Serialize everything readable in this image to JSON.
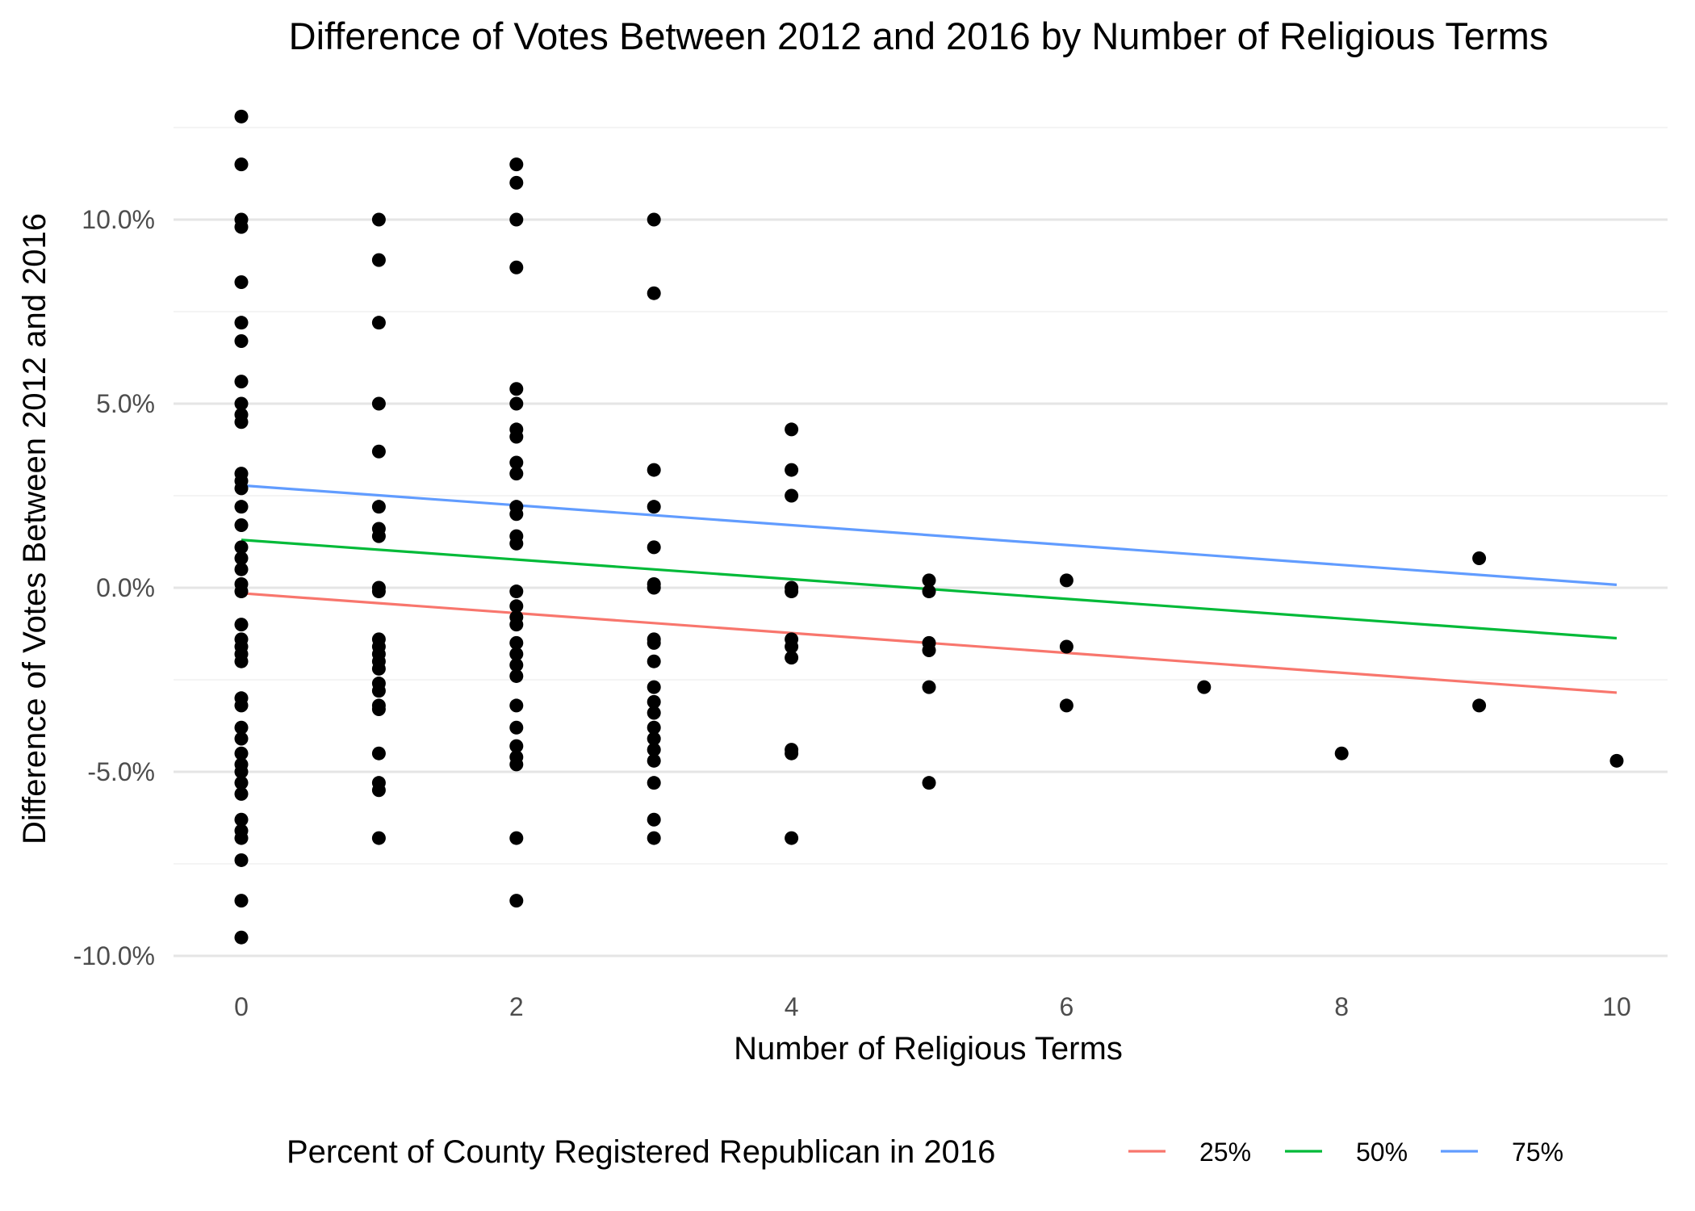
{
  "chart_data": {
    "type": "scatter",
    "title": "Difference of Votes Between 2012 and 2016 by Number of Religious Terms",
    "xlabel": "Number of Religious Terms",
    "ylabel": "Difference of Votes Between 2012 and 2016",
    "xlim": [
      -0.5,
      10.5
    ],
    "ylim": [
      -10.6,
      13.3
    ],
    "x_ticks": [
      0,
      2,
      4,
      6,
      8,
      10
    ],
    "x_tick_labels": [
      "0",
      "2",
      "4",
      "6",
      "8",
      "10"
    ],
    "y_ticks": [
      -10,
      -5,
      0,
      5,
      10
    ],
    "y_tick_labels": [
      "-10.0%",
      "-5.0%",
      "0.0%",
      "5.0%",
      "10.0%"
    ],
    "grid": true,
    "legend": {
      "title": "Percent of County Registered Republican in 2016",
      "position": "bottom"
    },
    "points": [
      [
        0,
        12.8
      ],
      [
        0,
        11.5
      ],
      [
        0,
        10.0
      ],
      [
        0,
        9.8
      ],
      [
        0,
        8.3
      ],
      [
        0,
        7.2
      ],
      [
        0,
        6.7
      ],
      [
        0,
        5.6
      ],
      [
        0,
        5.0
      ],
      [
        0,
        4.7
      ],
      [
        0,
        4.5
      ],
      [
        0,
        3.1
      ],
      [
        0,
        2.9
      ],
      [
        0,
        2.7
      ],
      [
        0,
        2.2
      ],
      [
        0,
        1.7
      ],
      [
        0,
        1.1
      ],
      [
        0,
        0.8
      ],
      [
        0,
        0.5
      ],
      [
        0,
        0.1
      ],
      [
        0,
        -0.1
      ],
      [
        0,
        -1.0
      ],
      [
        0,
        -1.4
      ],
      [
        0,
        -1.6
      ],
      [
        0,
        -1.8
      ],
      [
        0,
        -2.0
      ],
      [
        0,
        -3.0
      ],
      [
        0,
        -3.2
      ],
      [
        0,
        -3.8
      ],
      [
        0,
        -4.1
      ],
      [
        0,
        -4.5
      ],
      [
        0,
        -4.8
      ],
      [
        0,
        -5.0
      ],
      [
        0,
        -5.3
      ],
      [
        0,
        -5.6
      ],
      [
        0,
        -6.3
      ],
      [
        0,
        -6.6
      ],
      [
        0,
        -6.8
      ],
      [
        0,
        -7.4
      ],
      [
        0,
        -8.5
      ],
      [
        0,
        -9.5
      ],
      [
        1,
        10.0
      ],
      [
        1,
        8.9
      ],
      [
        1,
        7.2
      ],
      [
        1,
        5.0
      ],
      [
        1,
        3.7
      ],
      [
        1,
        2.2
      ],
      [
        1,
        1.6
      ],
      [
        1,
        1.4
      ],
      [
        1,
        0.0
      ],
      [
        1,
        -0.1
      ],
      [
        1,
        -1.4
      ],
      [
        1,
        -1.6
      ],
      [
        1,
        -1.8
      ],
      [
        1,
        -2.0
      ],
      [
        1,
        -2.2
      ],
      [
        1,
        -2.6
      ],
      [
        1,
        -2.8
      ],
      [
        1,
        -3.2
      ],
      [
        1,
        -3.3
      ],
      [
        1,
        -4.5
      ],
      [
        1,
        -5.3
      ],
      [
        1,
        -5.5
      ],
      [
        1,
        -6.8
      ],
      [
        2,
        11.5
      ],
      [
        2,
        11.0
      ],
      [
        2,
        10.0
      ],
      [
        2,
        8.7
      ],
      [
        2,
        5.4
      ],
      [
        2,
        5.0
      ],
      [
        2,
        4.3
      ],
      [
        2,
        4.1
      ],
      [
        2,
        3.4
      ],
      [
        2,
        3.1
      ],
      [
        2,
        2.2
      ],
      [
        2,
        2.0
      ],
      [
        2,
        1.4
      ],
      [
        2,
        1.2
      ],
      [
        2,
        -0.1
      ],
      [
        2,
        -0.5
      ],
      [
        2,
        -0.8
      ],
      [
        2,
        -1.0
      ],
      [
        2,
        -1.5
      ],
      [
        2,
        -1.8
      ],
      [
        2,
        -2.1
      ],
      [
        2,
        -2.4
      ],
      [
        2,
        -3.2
      ],
      [
        2,
        -3.8
      ],
      [
        2,
        -4.3
      ],
      [
        2,
        -4.6
      ],
      [
        2,
        -4.8
      ],
      [
        2,
        -6.8
      ],
      [
        2,
        -8.5
      ],
      [
        3,
        10.0
      ],
      [
        3,
        8.0
      ],
      [
        3,
        3.2
      ],
      [
        3,
        2.2
      ],
      [
        3,
        1.1
      ],
      [
        3,
        0.1
      ],
      [
        3,
        0.0
      ],
      [
        3,
        -1.4
      ],
      [
        3,
        -1.5
      ],
      [
        3,
        -2.0
      ],
      [
        3,
        -2.7
      ],
      [
        3,
        -3.1
      ],
      [
        3,
        -3.4
      ],
      [
        3,
        -3.8
      ],
      [
        3,
        -4.1
      ],
      [
        3,
        -4.4
      ],
      [
        3,
        -4.7
      ],
      [
        3,
        -5.3
      ],
      [
        3,
        -6.3
      ],
      [
        3,
        -6.8
      ],
      [
        4,
        4.3
      ],
      [
        4,
        3.2
      ],
      [
        4,
        2.5
      ],
      [
        4,
        0.0
      ],
      [
        4,
        -0.1
      ],
      [
        4,
        -1.4
      ],
      [
        4,
        -1.6
      ],
      [
        4,
        -1.9
      ],
      [
        4,
        -4.4
      ],
      [
        4,
        -4.5
      ],
      [
        4,
        -6.8
      ],
      [
        5,
        0.2
      ],
      [
        5,
        -0.1
      ],
      [
        5,
        -1.5
      ],
      [
        5,
        -1.7
      ],
      [
        5,
        -2.7
      ],
      [
        5,
        -5.3
      ],
      [
        6,
        0.2
      ],
      [
        6,
        -1.6
      ],
      [
        6,
        -3.2
      ],
      [
        7,
        -2.7
      ],
      [
        8,
        -4.5
      ],
      [
        9,
        0.8
      ],
      [
        9,
        -3.2
      ],
      [
        10,
        -4.7
      ]
    ],
    "series": [
      {
        "name": "25%",
        "color": "#F8766D",
        "x": [
          0,
          10
        ],
        "y": [
          -0.15,
          -2.85
        ]
      },
      {
        "name": "50%",
        "color": "#00BA38",
        "x": [
          0,
          10
        ],
        "y": [
          1.3,
          -1.37
        ]
      },
      {
        "name": "75%",
        "color": "#619CFF",
        "x": [
          0,
          10
        ],
        "y": [
          2.78,
          0.08
        ]
      }
    ]
  }
}
